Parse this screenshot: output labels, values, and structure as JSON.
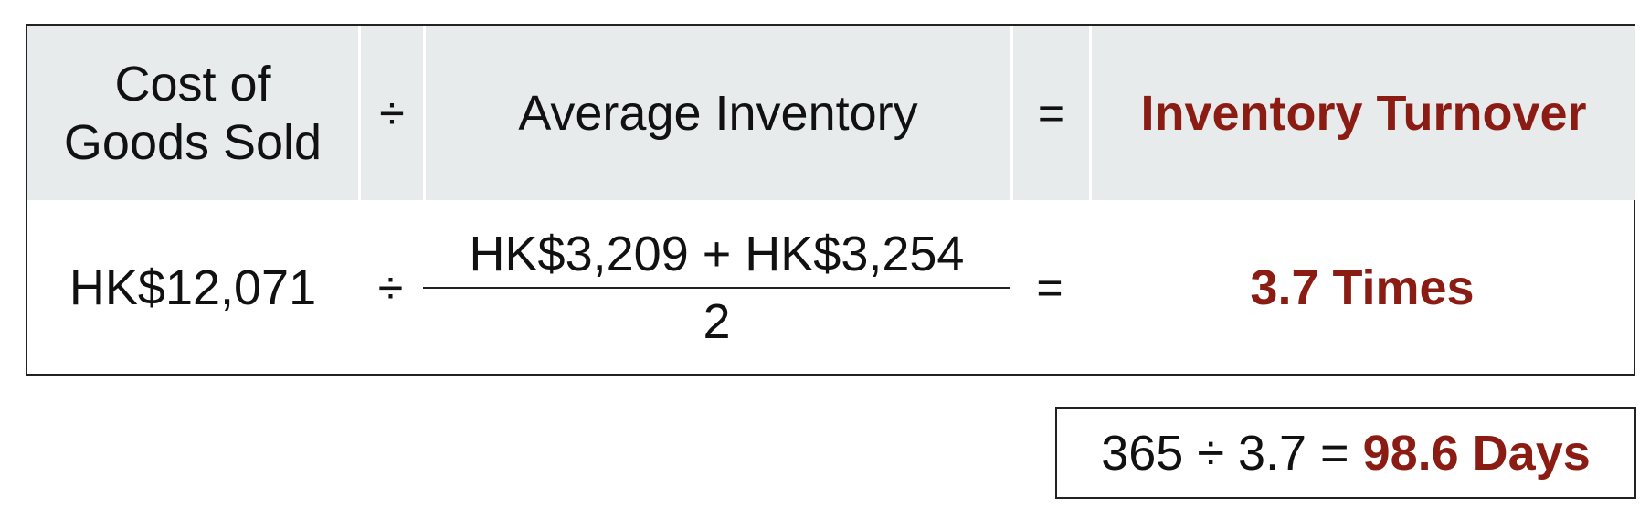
{
  "header": {
    "cost_of_goods_sold_line1": "Cost of",
    "cost_of_goods_sold_line2": "Goods Sold",
    "divide_symbol": "÷",
    "average_inventory": "Average Inventory",
    "equals_symbol": "=",
    "inventory_turnover": "Inventory Turnover"
  },
  "values": {
    "cost_of_goods_sold": "HK$12,071",
    "divide_symbol": "÷",
    "average_inventory_numerator": "HK$3,209 + HK$3,254",
    "average_inventory_denominator": "2",
    "equals_symbol": "=",
    "inventory_turnover": "3.7 Times"
  },
  "days_calculation": {
    "expression": "365 ÷ 3.7 = ",
    "result": "98.6 Days"
  },
  "colors": {
    "accent": "#8b1c14",
    "header_background": "#e8ebec",
    "border": "#222222"
  }
}
